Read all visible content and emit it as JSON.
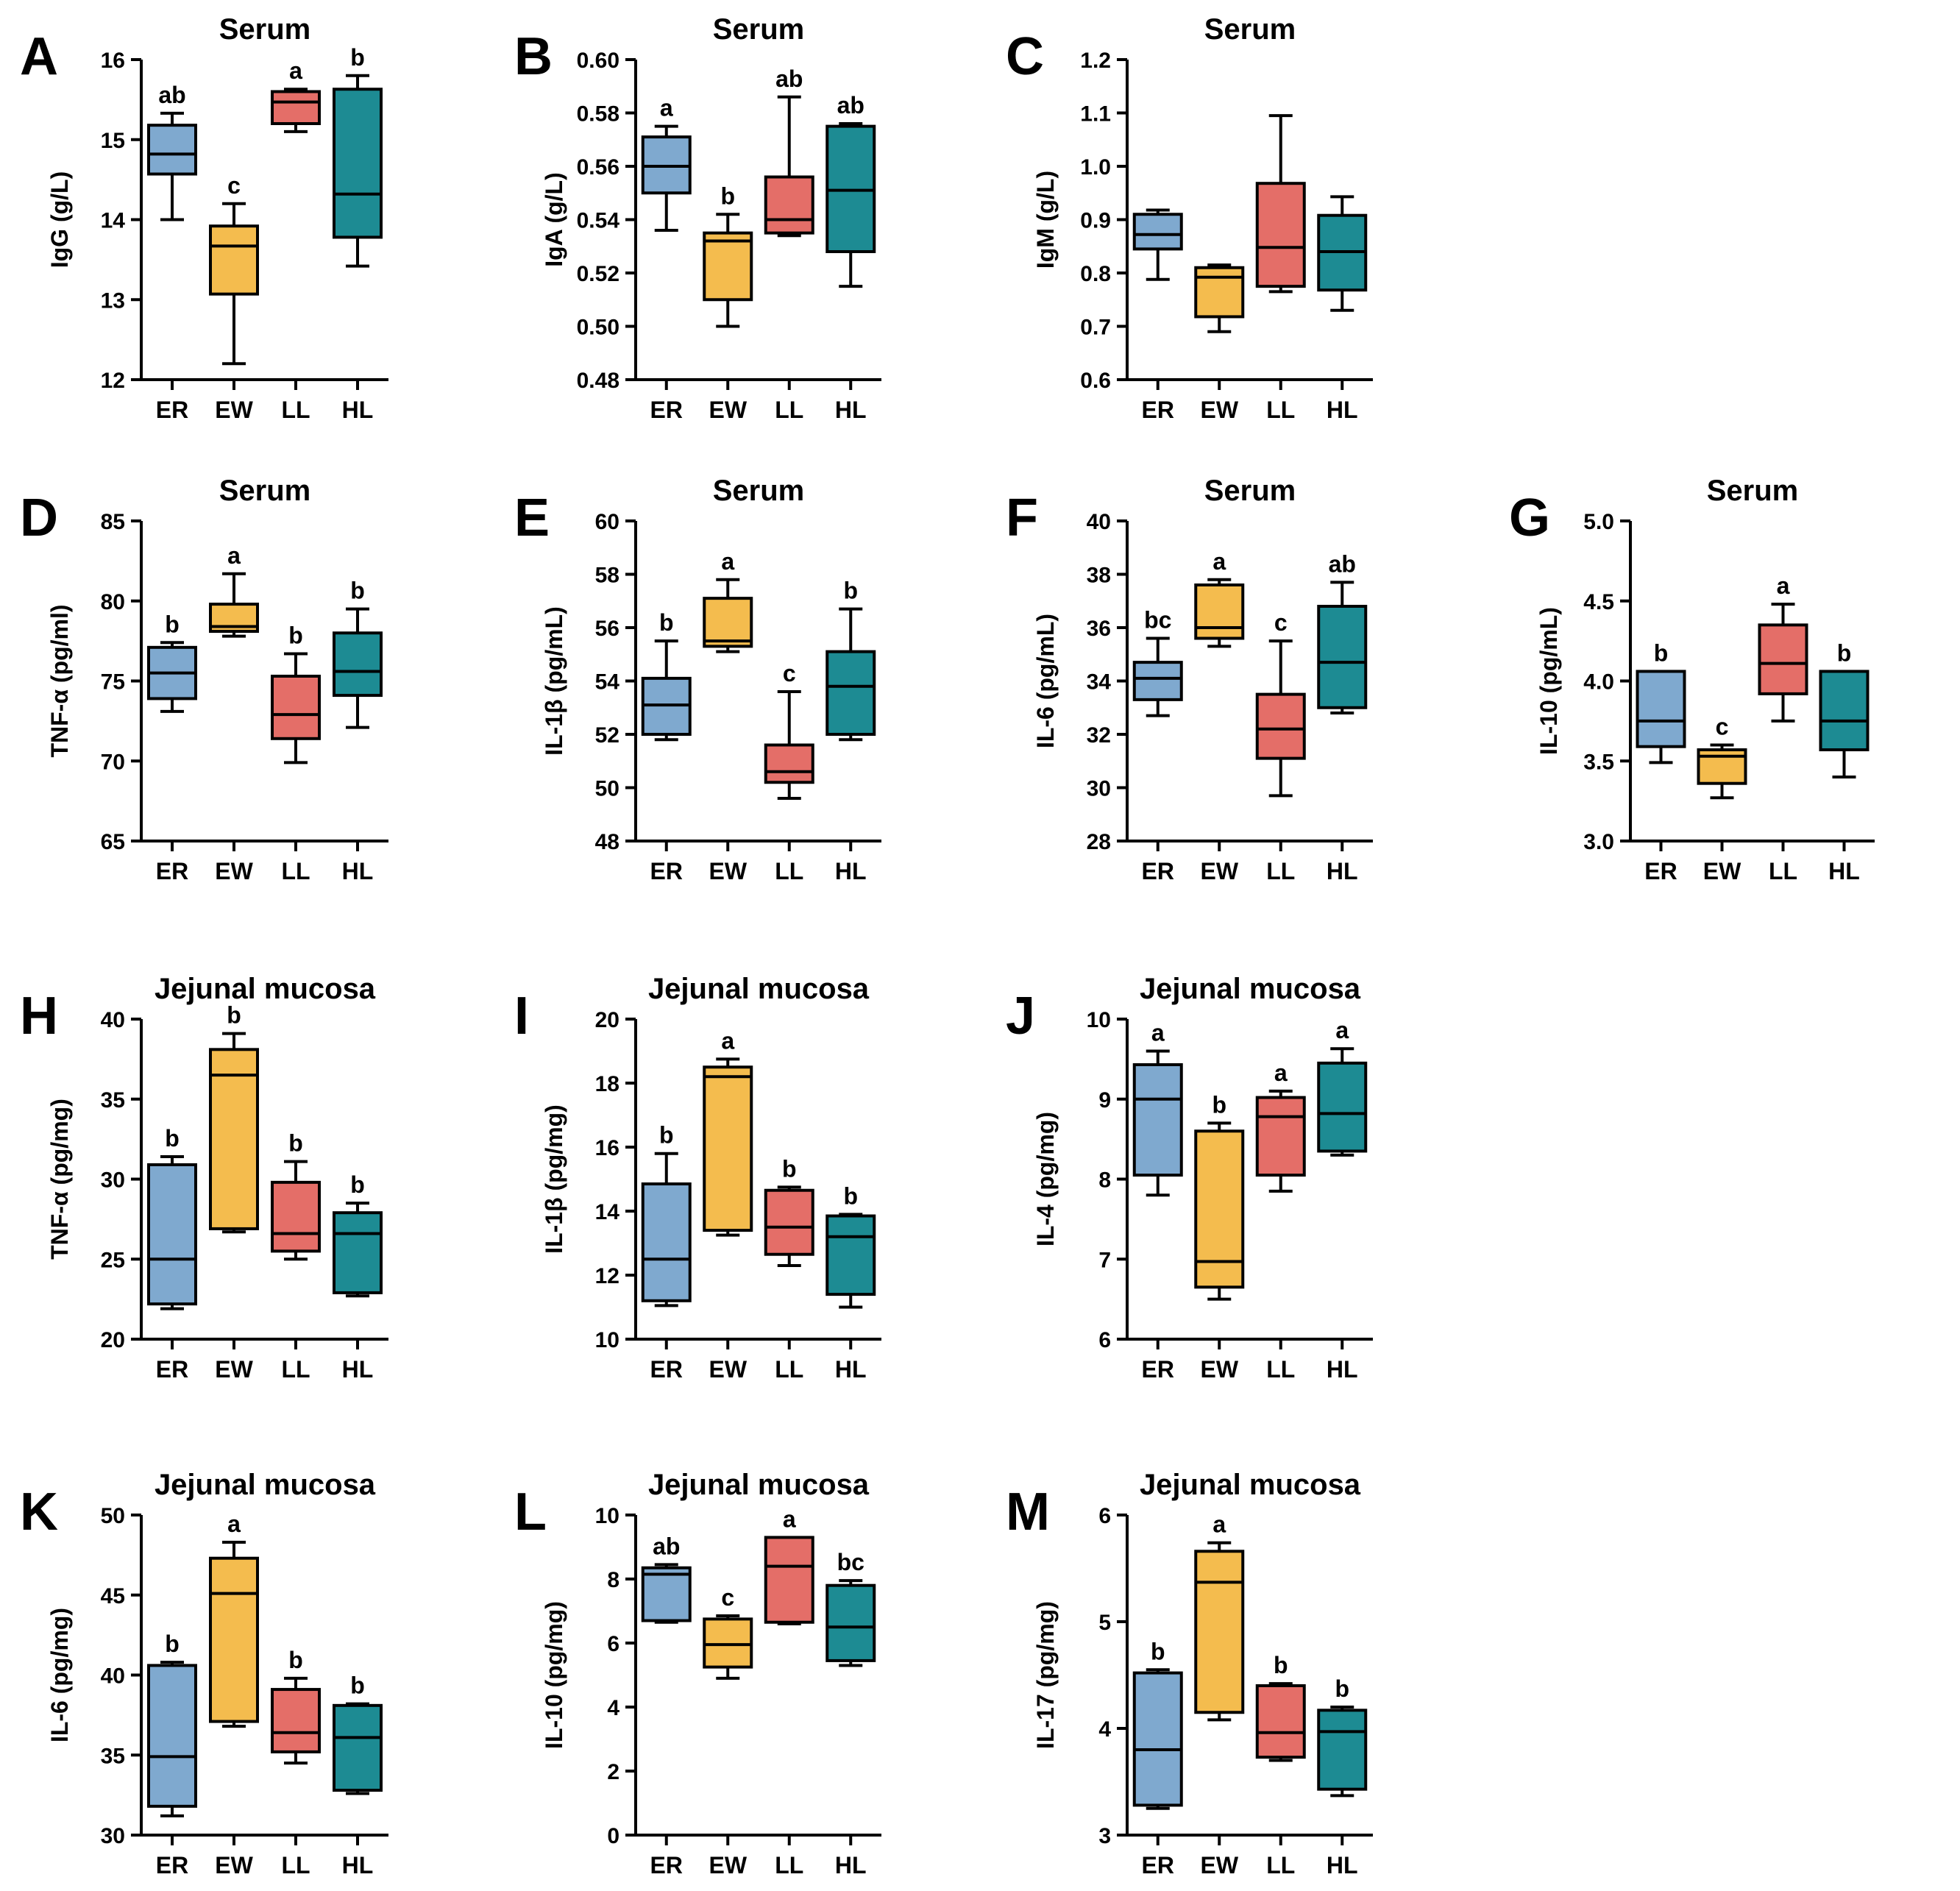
{
  "colors": {
    "ER": "#7FA9CF",
    "EW": "#F4BC4E",
    "LL": "#E46E68",
    "HL": "#1D8B93"
  },
  "chart_data": [
    {
      "panel": "A",
      "type": "box",
      "title": "Serum",
      "ylabel": "IgG (g/L)",
      "ylim": [
        12,
        16
      ],
      "yticks": [
        12,
        13,
        14,
        15,
        16
      ],
      "categories": [
        "ER",
        "EW",
        "LL",
        "HL"
      ],
      "boxes": [
        {
          "group": "ER",
          "min": 14.0,
          "q1": 14.57,
          "median": 14.82,
          "q3": 15.18,
          "max": 15.33,
          "sig": "ab"
        },
        {
          "group": "EW",
          "min": 12.2,
          "q1": 13.07,
          "median": 13.67,
          "q3": 13.92,
          "max": 14.2,
          "sig": "c"
        },
        {
          "group": "LL",
          "min": 15.1,
          "q1": 15.2,
          "median": 15.47,
          "q3": 15.6,
          "max": 15.63,
          "sig": "a"
        },
        {
          "group": "HL",
          "min": 13.42,
          "q1": 13.78,
          "median": 14.32,
          "q3": 15.63,
          "max": 15.8,
          "sig": "b"
        }
      ]
    },
    {
      "panel": "B",
      "type": "box",
      "title": "Serum",
      "ylabel": "IgA (g/L)",
      "ylim": [
        0.48,
        0.6
      ],
      "yticks": [
        "0.48",
        "0.50",
        "0.52",
        "0.54",
        "0.56",
        "0.58",
        "0.60"
      ],
      "categories": [
        "ER",
        "EW",
        "LL",
        "HL"
      ],
      "boxes": [
        {
          "group": "ER",
          "min": 0.536,
          "q1": 0.55,
          "median": 0.56,
          "q3": 0.571,
          "max": 0.575,
          "sig": "a"
        },
        {
          "group": "EW",
          "min": 0.5,
          "q1": 0.51,
          "median": 0.532,
          "q3": 0.535,
          "max": 0.542,
          "sig": "b"
        },
        {
          "group": "LL",
          "min": 0.534,
          "q1": 0.535,
          "median": 0.54,
          "q3": 0.556,
          "max": 0.586,
          "sig": "ab"
        },
        {
          "group": "HL",
          "min": 0.515,
          "q1": 0.528,
          "median": 0.551,
          "q3": 0.575,
          "max": 0.576,
          "sig": "ab"
        }
      ]
    },
    {
      "panel": "C",
      "type": "box",
      "title": "Serum",
      "ylabel": "IgM (g/L)",
      "ylim": [
        0.6,
        1.2
      ],
      "yticks": [
        "0.6",
        "0.7",
        "0.8",
        "0.9",
        "1.0",
        "1.1",
        "1.2"
      ],
      "categories": [
        "ER",
        "EW",
        "LL",
        "HL"
      ],
      "boxes": [
        {
          "group": "ER",
          "min": 0.788,
          "q1": 0.845,
          "median": 0.872,
          "q3": 0.91,
          "max": 0.918,
          "sig": ""
        },
        {
          "group": "EW",
          "min": 0.69,
          "q1": 0.718,
          "median": 0.792,
          "q3": 0.81,
          "max": 0.815,
          "sig": ""
        },
        {
          "group": "LL",
          "min": 0.765,
          "q1": 0.775,
          "median": 0.848,
          "q3": 0.968,
          "max": 1.095,
          "sig": ""
        },
        {
          "group": "HL",
          "min": 0.73,
          "q1": 0.768,
          "median": 0.84,
          "q3": 0.908,
          "max": 0.943,
          "sig": ""
        }
      ]
    },
    {
      "panel": "D",
      "type": "box",
      "title": "Serum",
      "ylabel": "TNF-α (pg/ml)",
      "ylim": [
        65,
        85
      ],
      "yticks": [
        65,
        70,
        75,
        80,
        85
      ],
      "categories": [
        "ER",
        "EW",
        "LL",
        "HL"
      ],
      "boxes": [
        {
          "group": "ER",
          "min": 73.1,
          "q1": 73.9,
          "median": 75.5,
          "q3": 77.1,
          "max": 77.4,
          "sig": "b"
        },
        {
          "group": "EW",
          "min": 77.8,
          "q1": 78.1,
          "median": 78.4,
          "q3": 79.8,
          "max": 81.7,
          "sig": "a"
        },
        {
          "group": "LL",
          "min": 69.9,
          "q1": 71.4,
          "median": 72.9,
          "q3": 75.3,
          "max": 76.7,
          "sig": "b"
        },
        {
          "group": "HL",
          "min": 72.1,
          "q1": 74.1,
          "median": 75.6,
          "q3": 78.0,
          "max": 79.5,
          "sig": "b"
        }
      ]
    },
    {
      "panel": "E",
      "type": "box",
      "title": "Serum",
      "ylabel": "IL-1β (pg/mL)",
      "ylim": [
        48,
        60
      ],
      "yticks": [
        48,
        50,
        52,
        54,
        56,
        58,
        60
      ],
      "categories": [
        "ER",
        "EW",
        "LL",
        "HL"
      ],
      "boxes": [
        {
          "group": "ER",
          "min": 51.8,
          "q1": 52.0,
          "median": 53.1,
          "q3": 54.1,
          "max": 55.5,
          "sig": "b"
        },
        {
          "group": "EW",
          "min": 55.1,
          "q1": 55.3,
          "median": 55.5,
          "q3": 57.1,
          "max": 57.8,
          "sig": "a"
        },
        {
          "group": "LL",
          "min": 49.6,
          "q1": 50.2,
          "median": 50.6,
          "q3": 51.6,
          "max": 53.6,
          "sig": "c"
        },
        {
          "group": "HL",
          "min": 51.8,
          "q1": 52.0,
          "median": 53.8,
          "q3": 55.1,
          "max": 56.7,
          "sig": "b"
        }
      ]
    },
    {
      "panel": "F",
      "type": "box",
      "title": "Serum",
      "ylabel": "IL-6 (pg/mL)",
      "ylim": [
        28,
        40
      ],
      "yticks": [
        28,
        30,
        32,
        34,
        36,
        38,
        40
      ],
      "categories": [
        "ER",
        "EW",
        "LL",
        "HL"
      ],
      "boxes": [
        {
          "group": "ER",
          "min": 32.7,
          "q1": 33.3,
          "median": 34.1,
          "q3": 34.7,
          "max": 35.6,
          "sig": "bc"
        },
        {
          "group": "EW",
          "min": 35.3,
          "q1": 35.6,
          "median": 36.0,
          "q3": 37.6,
          "max": 37.8,
          "sig": "a"
        },
        {
          "group": "LL",
          "min": 29.7,
          "q1": 31.1,
          "median": 32.2,
          "q3": 33.5,
          "max": 35.5,
          "sig": "c"
        },
        {
          "group": "HL",
          "min": 32.8,
          "q1": 33.0,
          "median": 34.7,
          "q3": 36.8,
          "max": 37.7,
          "sig": "ab"
        }
      ]
    },
    {
      "panel": "G",
      "type": "box",
      "title": "Serum",
      "ylabel": "IL-10 (pg/mL)",
      "ylim": [
        3.0,
        5.0
      ],
      "yticks": [
        "3.0",
        "3.5",
        "4.0",
        "4.5",
        "5.0"
      ],
      "categories": [
        "ER",
        "EW",
        "LL",
        "HL"
      ],
      "boxes": [
        {
          "group": "ER",
          "min": 3.49,
          "q1": 3.59,
          "median": 3.75,
          "q3": 4.06,
          "max": 4.06,
          "sig": "b"
        },
        {
          "group": "EW",
          "min": 3.27,
          "q1": 3.36,
          "median": 3.53,
          "q3": 3.57,
          "max": 3.6,
          "sig": "c"
        },
        {
          "group": "LL",
          "min": 3.75,
          "q1": 3.92,
          "median": 4.11,
          "q3": 4.35,
          "max": 4.48,
          "sig": "a"
        },
        {
          "group": "HL",
          "min": 3.4,
          "q1": 3.57,
          "median": 3.75,
          "q3": 4.06,
          "max": 4.06,
          "sig": "b"
        }
      ]
    },
    {
      "panel": "H",
      "type": "box",
      "title": "Jejunal mucosa",
      "ylabel": "TNF-α (pg/mg)",
      "ylim": [
        20,
        40
      ],
      "yticks": [
        20,
        25,
        30,
        35,
        40
      ],
      "categories": [
        "ER",
        "EW",
        "LL",
        "HL"
      ],
      "boxes": [
        {
          "group": "ER",
          "min": 21.9,
          "q1": 22.2,
          "median": 25.0,
          "q3": 30.9,
          "max": 31.4,
          "sig": "b"
        },
        {
          "group": "EW",
          "min": 26.7,
          "q1": 26.9,
          "median": 36.5,
          "q3": 38.1,
          "max": 39.1,
          "sig": "b"
        },
        {
          "group": "LL",
          "min": 25.0,
          "q1": 25.5,
          "median": 26.6,
          "q3": 29.8,
          "max": 31.1,
          "sig": "b"
        },
        {
          "group": "HL",
          "min": 22.7,
          "q1": 22.9,
          "median": 26.6,
          "q3": 27.9,
          "max": 28.5,
          "sig": "b"
        }
      ]
    },
    {
      "panel": "I",
      "type": "box",
      "title": "Jejunal mucosa",
      "ylabel": "IL-1β (pg/mg)",
      "ylim": [
        10,
        20
      ],
      "yticks": [
        10,
        12,
        14,
        16,
        18,
        20
      ],
      "categories": [
        "ER",
        "EW",
        "LL",
        "HL"
      ],
      "boxes": [
        {
          "group": "ER",
          "min": 11.05,
          "q1": 11.2,
          "median": 12.5,
          "q3": 14.85,
          "max": 15.8,
          "sig": "b"
        },
        {
          "group": "EW",
          "min": 13.25,
          "q1": 13.4,
          "median": 18.2,
          "q3": 18.5,
          "max": 18.75,
          "sig": "a"
        },
        {
          "group": "LL",
          "min": 12.3,
          "q1": 12.65,
          "median": 13.5,
          "q3": 14.65,
          "max": 14.75,
          "sig": "b"
        },
        {
          "group": "HL",
          "min": 11.0,
          "q1": 11.4,
          "median": 13.2,
          "q3": 13.85,
          "max": 13.9,
          "sig": "b"
        }
      ]
    },
    {
      "panel": "J",
      "type": "box",
      "title": "Jejunal mucosa",
      "ylabel": "IL-4 (pg/mg)",
      "ylim": [
        6,
        10
      ],
      "yticks": [
        6,
        7,
        8,
        9,
        10
      ],
      "categories": [
        "ER",
        "EW",
        "LL",
        "HL"
      ],
      "boxes": [
        {
          "group": "ER",
          "min": 7.8,
          "q1": 8.05,
          "median": 9.0,
          "q3": 9.43,
          "max": 9.6,
          "sig": "a"
        },
        {
          "group": "EW",
          "min": 6.5,
          "q1": 6.65,
          "median": 6.97,
          "q3": 8.6,
          "max": 8.7,
          "sig": "b"
        },
        {
          "group": "LL",
          "min": 7.85,
          "q1": 8.05,
          "median": 8.78,
          "q3": 9.02,
          "max": 9.1,
          "sig": "a"
        },
        {
          "group": "HL",
          "min": 8.3,
          "q1": 8.35,
          "median": 8.82,
          "q3": 9.45,
          "max": 9.63,
          "sig": "a"
        }
      ]
    },
    {
      "panel": "K",
      "type": "box",
      "title": "Jejunal mucosa",
      "ylabel": "IL-6 (pg/mg)",
      "ylim": [
        30,
        50
      ],
      "yticks": [
        30,
        35,
        40,
        45,
        50
      ],
      "categories": [
        "ER",
        "EW",
        "LL",
        "HL"
      ],
      "boxes": [
        {
          "group": "ER",
          "min": 31.2,
          "q1": 31.8,
          "median": 34.9,
          "q3": 40.6,
          "max": 40.8,
          "sig": "b"
        },
        {
          "group": "EW",
          "min": 36.8,
          "q1": 37.1,
          "median": 45.1,
          "q3": 47.3,
          "max": 48.3,
          "sig": "a"
        },
        {
          "group": "LL",
          "min": 34.5,
          "q1": 35.2,
          "median": 36.4,
          "q3": 39.1,
          "max": 39.8,
          "sig": "b"
        },
        {
          "group": "HL",
          "min": 32.6,
          "q1": 32.8,
          "median": 36.1,
          "q3": 38.1,
          "max": 38.2,
          "sig": "b"
        }
      ]
    },
    {
      "panel": "L",
      "type": "box",
      "title": "Jejunal mucosa",
      "ylabel": "IL-10 (pg/mg)",
      "ylim": [
        0,
        10
      ],
      "yticks": [
        0,
        2,
        4,
        6,
        8,
        10
      ],
      "categories": [
        "ER",
        "EW",
        "LL",
        "HL"
      ],
      "boxes": [
        {
          "group": "ER",
          "min": 6.65,
          "q1": 6.7,
          "median": 8.15,
          "q3": 8.35,
          "max": 8.45,
          "sig": "ab"
        },
        {
          "group": "EW",
          "min": 4.9,
          "q1": 5.25,
          "median": 5.95,
          "q3": 6.75,
          "max": 6.85,
          "sig": "c"
        },
        {
          "group": "LL",
          "min": 6.6,
          "q1": 6.65,
          "median": 8.4,
          "q3": 9.3,
          "max": 9.3,
          "sig": "a"
        },
        {
          "group": "HL",
          "min": 5.3,
          "q1": 5.45,
          "median": 6.5,
          "q3": 7.8,
          "max": 7.95,
          "sig": "bc"
        }
      ]
    },
    {
      "panel": "M",
      "type": "box",
      "title": "Jejunal mucosa",
      "ylabel": "IL-17 (pg/mg)",
      "ylim": [
        3,
        6
      ],
      "yticks": [
        3,
        4,
        5,
        6
      ],
      "categories": [
        "ER",
        "EW",
        "LL",
        "HL"
      ],
      "boxes": [
        {
          "group": "ER",
          "min": 3.25,
          "q1": 3.28,
          "median": 3.8,
          "q3": 4.52,
          "max": 4.55,
          "sig": "b"
        },
        {
          "group": "EW",
          "min": 4.08,
          "q1": 4.15,
          "median": 5.37,
          "q3": 5.66,
          "max": 5.74,
          "sig": "a"
        },
        {
          "group": "LL",
          "min": 3.7,
          "q1": 3.73,
          "median": 3.96,
          "q3": 4.4,
          "max": 4.42,
          "sig": "b"
        },
        {
          "group": "HL",
          "min": 3.37,
          "q1": 3.43,
          "median": 3.97,
          "q3": 4.17,
          "max": 4.2,
          "sig": "b"
        }
      ]
    }
  ]
}
